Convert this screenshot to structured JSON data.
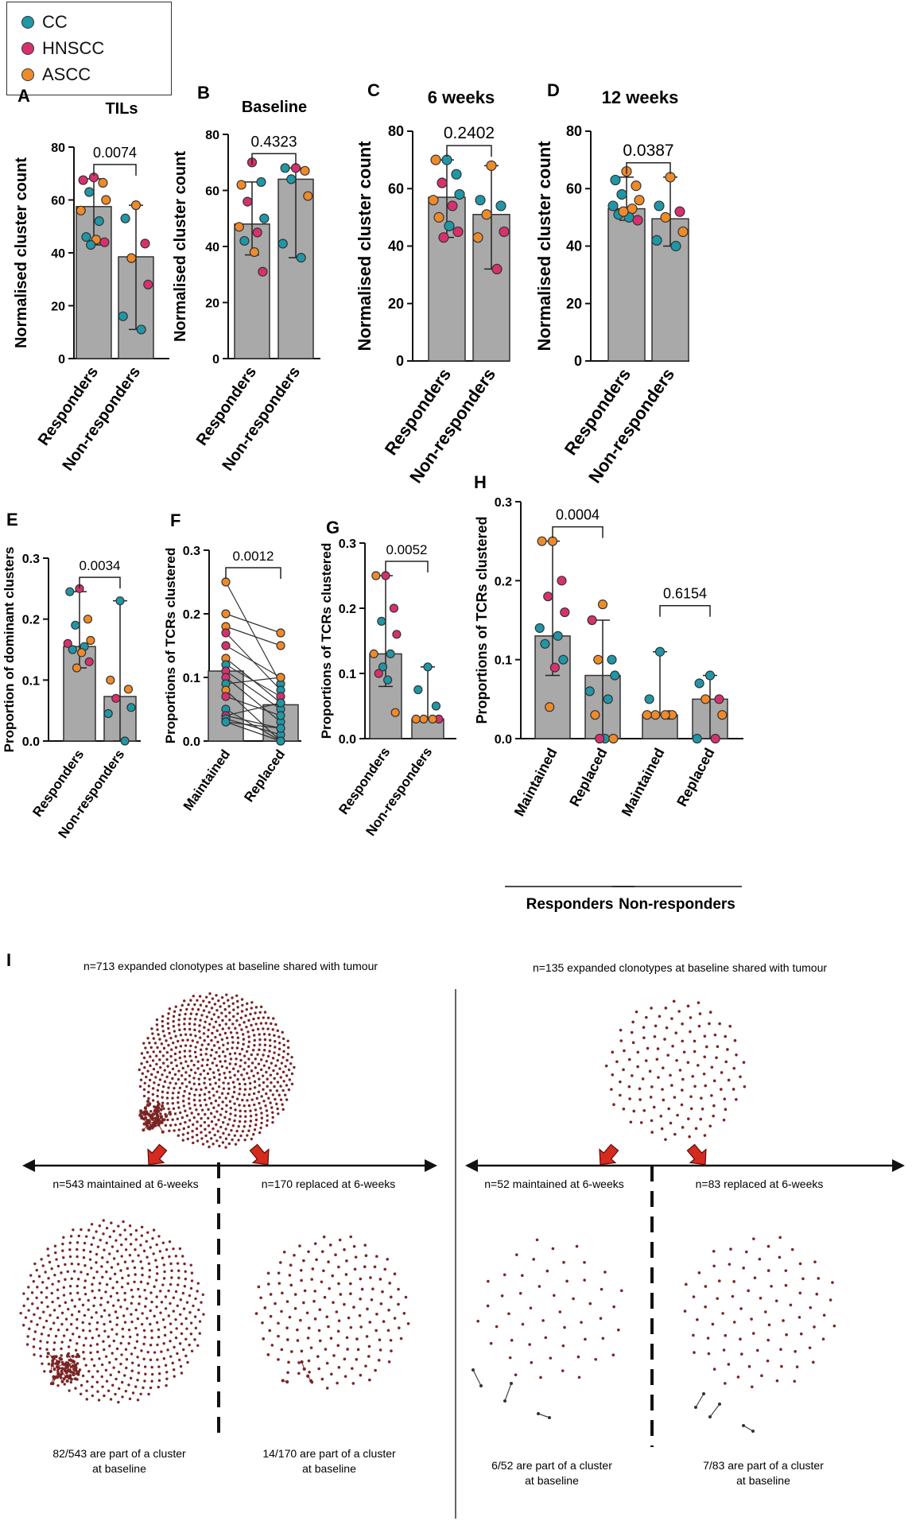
{
  "legend": {
    "items": [
      {
        "label": "CC",
        "color": "#1f97a6"
      },
      {
        "label": "HNSCC",
        "color": "#d8306f"
      },
      {
        "label": "ASCC",
        "color": "#ef8a2a"
      }
    ]
  },
  "colors": {
    "bar_fill": "#a9a9a9",
    "bar_edge": "#333333",
    "cc": "#1f97a6",
    "hnscc": "#d8306f",
    "ascc": "#ef8a2a",
    "node": "#7a2525",
    "arrow": "#d52b1e"
  },
  "chart_data": [
    {
      "id": "A",
      "type": "bar",
      "title": "TILs",
      "ylabel": "Normalised cluster count",
      "ylim": [
        0,
        80
      ],
      "ticks": [
        0,
        20,
        40,
        60,
        80
      ],
      "categories": [
        "Responders",
        "Non-responders"
      ],
      "values": [
        57.5,
        38.5
      ],
      "error": [
        [
          43,
          68
        ],
        [
          11,
          58
        ]
      ],
      "pvalue": "0.0074",
      "points": [
        [
          [
            "h",
            68.5
          ],
          [
            "h",
            67.5
          ],
          [
            "a",
            66.5
          ],
          [
            "c",
            63
          ],
          [
            "a",
            60
          ],
          [
            "a",
            56
          ],
          [
            "c",
            52
          ],
          [
            "c",
            46
          ],
          [
            "a",
            45
          ],
          [
            "h",
            44
          ],
          [
            "c",
            43
          ]
        ],
        [
          [
            "a",
            58
          ],
          [
            "c",
            53
          ],
          [
            "h",
            43.5
          ],
          [
            "a",
            38
          ],
          [
            "h",
            28
          ],
          [
            "c",
            16
          ],
          [
            "c",
            11
          ]
        ]
      ]
    },
    {
      "id": "B",
      "type": "bar",
      "title": "Baseline",
      "ylabel": "Normalised cluster count",
      "ylim": [
        0,
        80
      ],
      "ticks": [
        0,
        20,
        40,
        60,
        80
      ],
      "categories": [
        "Responders",
        "Non-responders"
      ],
      "values": [
        48,
        64
      ],
      "error": [
        [
          37,
          63
        ],
        [
          36,
          68
        ]
      ],
      "pvalue": "0.4323",
      "points": [
        [
          [
            "h",
            70
          ],
          [
            "a",
            62
          ],
          [
            "c",
            63
          ],
          [
            "h",
            56
          ],
          [
            "c",
            50
          ],
          [
            "a",
            47
          ],
          [
            "h",
            45
          ],
          [
            "c",
            42
          ],
          [
            "a",
            38
          ],
          [
            "h",
            31
          ]
        ],
        [
          [
            "h",
            68
          ],
          [
            "c",
            68
          ],
          [
            "a",
            67
          ],
          [
            "c",
            64
          ],
          [
            "a",
            58
          ],
          [
            "c",
            41
          ],
          [
            "c",
            36
          ]
        ]
      ]
    },
    {
      "id": "C",
      "type": "bar",
      "title": "6 weeks",
      "ylabel": "Normalised cluster count",
      "ylim": [
        0,
        80
      ],
      "ticks": [
        0,
        20,
        40,
        60,
        80
      ],
      "categories": [
        "Responders",
        "Non-responders"
      ],
      "values": [
        57,
        51
      ],
      "error": [
        [
          43,
          70
        ],
        [
          32,
          68
        ]
      ],
      "pvalue": "0.2402",
      "points": [
        [
          [
            "c",
            70
          ],
          [
            "a",
            70
          ],
          [
            "c",
            65
          ],
          [
            "h",
            62
          ],
          [
            "c",
            58
          ],
          [
            "a",
            56
          ],
          [
            "h",
            54
          ],
          [
            "a",
            50
          ],
          [
            "c",
            47
          ],
          [
            "h",
            45
          ],
          [
            "h",
            43
          ]
        ],
        [
          [
            "a",
            68
          ],
          [
            "c",
            56
          ],
          [
            "c",
            54
          ],
          [
            "a",
            51
          ],
          [
            "h",
            45
          ],
          [
            "a",
            43
          ],
          [
            "h",
            32
          ]
        ]
      ]
    },
    {
      "id": "D",
      "type": "bar",
      "title": "12 weeks",
      "ylabel": "Normalised cluster count",
      "ylim": [
        0,
        80
      ],
      "ticks": [
        0,
        20,
        40,
        60,
        80
      ],
      "categories": [
        "Responders",
        "Non-responders"
      ],
      "values": [
        53,
        49.5
      ],
      "error": [
        [
          49,
          64
        ],
        [
          40,
          64
        ]
      ],
      "pvalue": "0.0387",
      "points": [
        [
          [
            "a",
            66
          ],
          [
            "c",
            63
          ],
          [
            "a",
            61
          ],
          [
            "c",
            58
          ],
          [
            "a",
            56
          ],
          [
            "c",
            54
          ],
          [
            "a",
            53
          ],
          [
            "c",
            51
          ],
          [
            "c",
            50
          ],
          [
            "h",
            49
          ],
          [
            "a",
            52
          ]
        ],
        [
          [
            "a",
            64
          ],
          [
            "c",
            54
          ],
          [
            "h",
            52
          ],
          [
            "a",
            50
          ],
          [
            "a",
            45
          ],
          [
            "c",
            42
          ],
          [
            "c",
            40
          ]
        ]
      ]
    },
    {
      "id": "E",
      "type": "bar",
      "title": "",
      "ylabel": "Proportion of dominant clusters",
      "ylim": [
        0,
        0.3
      ],
      "ticks": [
        "0.0",
        "0.1",
        "0.2",
        "0.3"
      ],
      "categories": [
        "Responders",
        "Non-responders"
      ],
      "values": [
        0.155,
        0.073
      ],
      "error": [
        [
          0.12,
          0.245
        ],
        [
          0.0,
          0.23
        ]
      ],
      "pvalue": "0.0034",
      "points": [
        [
          [
            "h",
            0.25
          ],
          [
            "c",
            0.245
          ],
          [
            "a",
            0.2
          ],
          [
            "c",
            0.19
          ],
          [
            "a",
            0.165
          ],
          [
            "h",
            0.16
          ],
          [
            "c",
            0.155
          ],
          [
            "c",
            0.15
          ],
          [
            "a",
            0.145
          ],
          [
            "h",
            0.13
          ],
          [
            "a",
            0.12
          ]
        ],
        [
          [
            "c",
            0.23
          ],
          [
            "a",
            0.1
          ],
          [
            "a",
            0.085
          ],
          [
            "h",
            0.07
          ],
          [
            "c",
            0.055
          ],
          [
            "c",
            0.045
          ],
          [
            "c",
            0.0
          ]
        ]
      ]
    },
    {
      "id": "F",
      "type": "bar",
      "title": "",
      "ylabel": "Proportions of TCRs clustered",
      "ylim": [
        0,
        0.3
      ],
      "ticks": [
        "0.0",
        "0.1",
        "0.2",
        "0.3"
      ],
      "categories": [
        "Maintained",
        "Replaced"
      ],
      "values": [
        0.11,
        0.057
      ],
      "pvalue": "0.0012",
      "paired": [
        [
          0.25,
          0.09
        ],
        [
          0.2,
          0.17
        ],
        [
          0.18,
          0.15
        ],
        [
          0.17,
          0.08
        ],
        [
          0.15,
          0.1
        ],
        [
          0.13,
          0.06
        ],
        [
          0.12,
          0.07
        ],
        [
          0.11,
          0.05
        ],
        [
          0.1,
          0.03
        ],
        [
          0.09,
          0.1
        ],
        [
          0.08,
          0.0
        ],
        [
          0.07,
          0.04
        ],
        [
          0.05,
          0.0
        ],
        [
          0.04,
          0.06
        ],
        [
          0.04,
          0.02
        ],
        [
          0.035,
          0.01
        ],
        [
          0.03,
          0.0
        ],
        [
          0.03,
          0.02
        ]
      ],
      "point_groups": [
        [
          "a",
          "a",
          "a",
          "h",
          "h",
          "a",
          "c",
          "h",
          "h",
          "c",
          "a",
          "h",
          "c",
          "c",
          "h",
          "c",
          "c",
          "c"
        ],
        [
          "c",
          "a",
          "a",
          "c",
          "h",
          "c",
          "h",
          "c",
          "c",
          "a",
          "c",
          "c",
          "a",
          "c",
          "h",
          "c",
          "c",
          "c"
        ]
      ]
    },
    {
      "id": "G",
      "type": "bar",
      "title": "",
      "ylabel": "Proportions of TCRs clustered",
      "ylim": [
        0,
        0.3
      ],
      "ticks": [
        "0.0",
        "0.1",
        "0.2",
        "0.3"
      ],
      "categories": [
        "Responders",
        "Non-responders"
      ],
      "values": [
        0.13,
        0.03
      ],
      "error": [
        [
          0.08,
          0.25
        ],
        [
          0.03,
          0.11
        ]
      ],
      "pvalue": "0.0052",
      "points": [
        [
          [
            "h",
            0.25
          ],
          [
            "a",
            0.25
          ],
          [
            "h",
            0.2
          ],
          [
            "c",
            0.18
          ],
          [
            "h",
            0.16
          ],
          [
            "a",
            0.13
          ],
          [
            "c",
            0.13
          ],
          [
            "h",
            0.1
          ],
          [
            "c",
            0.09
          ],
          [
            "a",
            0.04
          ],
          [
            "c",
            0.11
          ]
        ],
        [
          [
            "c",
            0.11
          ],
          [
            "c",
            0.075
          ],
          [
            "c",
            0.05
          ],
          [
            "a",
            0.03
          ],
          [
            "h",
            0.03
          ],
          [
            "a",
            0.03
          ],
          [
            "a",
            0.03
          ]
        ]
      ]
    },
    {
      "id": "H",
      "type": "bar",
      "title": "",
      "ylabel": "Proportions of TCRs clustered",
      "ylim": [
        0,
        0.3
      ],
      "ticks": [
        "0.0",
        "0.1",
        "0.2",
        "0.3"
      ],
      "categories": [
        "Maintained",
        "Replaced",
        "Maintained",
        "Replaced"
      ],
      "groups": [
        "Responders",
        "Non-responders"
      ],
      "values": [
        0.13,
        0.08,
        0.03,
        0.05
      ],
      "error": [
        [
          0.08,
          0.25
        ],
        [
          0.0,
          0.15
        ],
        [
          0.03,
          0.11
        ],
        [
          0.0,
          0.08
        ]
      ],
      "pvalues": [
        "0.0004",
        "0.6154"
      ],
      "points": [
        [
          [
            "a",
            0.25
          ],
          [
            "a",
            0.25
          ],
          [
            "h",
            0.2
          ],
          [
            "h",
            0.18
          ],
          [
            "h",
            0.16
          ],
          [
            "c",
            0.14
          ],
          [
            "c",
            0.13
          ],
          [
            "c",
            0.12
          ],
          [
            "h",
            0.09
          ],
          [
            "c",
            0.1
          ],
          [
            "a",
            0.04
          ]
        ],
        [
          [
            "a",
            0.17
          ],
          [
            "h",
            0.15
          ],
          [
            "c",
            0.1
          ],
          [
            "a",
            0.1
          ],
          [
            "c",
            0.08
          ],
          [
            "c",
            0.06
          ],
          [
            "c",
            0.05
          ],
          [
            "a",
            0.03
          ],
          [
            "c",
            0.0
          ],
          [
            "a",
            0.0
          ],
          [
            "h",
            0.0
          ]
        ],
        [
          [
            "c",
            0.11
          ],
          [
            "c",
            0.05
          ],
          [
            "h",
            0.03
          ],
          [
            "a",
            0.03
          ],
          [
            "a",
            0.03
          ],
          [
            "a",
            0.03
          ],
          [
            "a",
            0.03
          ]
        ],
        [
          [
            "c",
            0.08
          ],
          [
            "c",
            0.07
          ],
          [
            "h",
            0.05
          ],
          [
            "a",
            0.05
          ],
          [
            "a",
            0.03
          ],
          [
            "c",
            0.0
          ],
          [
            "h",
            0.0
          ]
        ]
      ]
    }
  ],
  "panel_I": {
    "label": "I",
    "left": {
      "header": "n=713 expanded clonotypes at baseline shared with tumour",
      "maintained": "n=543 maintained at 6-weeks",
      "replaced": "n=170 replaced at 6-weeks",
      "maintained_caption": [
        "82/543 are part of a cluster",
        "at baseline"
      ],
      "replaced_caption": [
        "14/170 are part of a cluster",
        "at baseline"
      ]
    },
    "right": {
      "header": "n=135 expanded clonotypes at baseline shared with tumour",
      "maintained": "n=52 maintained at 6-weeks",
      "replaced": "n=83 replaced at 6-weeks",
      "maintained_caption": [
        "6/52 are part of a cluster",
        "at baseline"
      ],
      "replaced_caption": [
        "7/83 are part of a cluster",
        "at baseline"
      ]
    }
  }
}
